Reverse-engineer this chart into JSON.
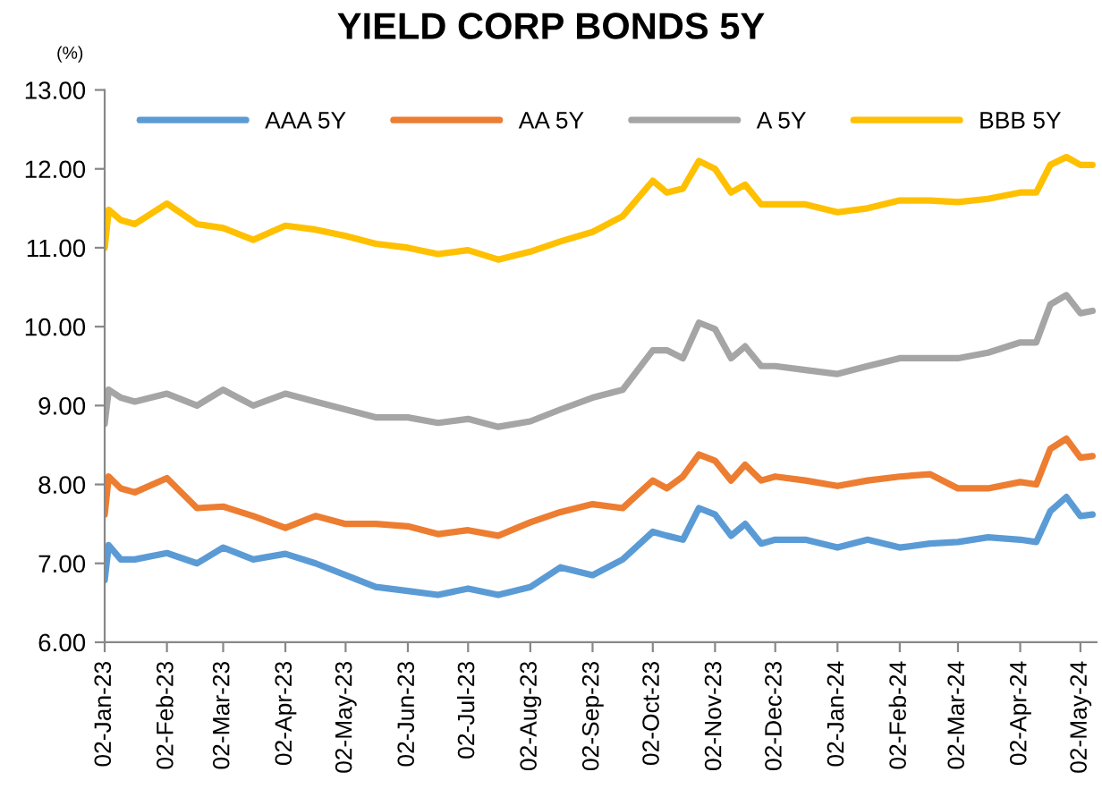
{
  "chart_data": {
    "type": "line",
    "title": "YIELD CORP BONDS 5Y",
    "ylabel": "(%)",
    "x": [
      "2023-01-02",
      "2023-01-04",
      "2023-01-10",
      "2023-01-17",
      "2023-02-02",
      "2023-02-17",
      "2023-03-02",
      "2023-03-17",
      "2023-04-02",
      "2023-04-17",
      "2023-05-02",
      "2023-05-17",
      "2023-06-02",
      "2023-06-17",
      "2023-07-02",
      "2023-07-17",
      "2023-08-02",
      "2023-08-17",
      "2023-09-02",
      "2023-09-17",
      "2023-10-02",
      "2023-10-09",
      "2023-10-17",
      "2023-10-25",
      "2023-11-02",
      "2023-11-10",
      "2023-11-17",
      "2023-11-25",
      "2023-12-02",
      "2023-12-17",
      "2024-01-02",
      "2024-01-17",
      "2024-02-02",
      "2024-02-17",
      "2024-03-02",
      "2024-03-17",
      "2024-04-02",
      "2024-04-10",
      "2024-04-17",
      "2024-04-25",
      "2024-05-02",
      "2024-05-08"
    ],
    "series": [
      {
        "name": "AAA 5Y",
        "color": "#5b9bd5",
        "values": [
          6.79,
          7.23,
          7.05,
          7.05,
          7.13,
          7.0,
          7.2,
          7.05,
          7.12,
          7.0,
          6.85,
          6.7,
          6.65,
          6.6,
          6.68,
          6.6,
          6.7,
          6.95,
          6.85,
          7.05,
          7.4,
          7.35,
          7.3,
          7.7,
          7.62,
          7.35,
          7.5,
          7.25,
          7.3,
          7.3,
          7.2,
          7.3,
          7.2,
          7.25,
          7.27,
          7.33,
          7.3,
          7.27,
          7.66,
          7.84,
          7.6,
          7.62
        ]
      },
      {
        "name": "AA 5Y",
        "color": "#ed7d31",
        "values": [
          7.62,
          8.1,
          7.95,
          7.9,
          8.08,
          7.7,
          7.72,
          7.6,
          7.45,
          7.6,
          7.5,
          7.5,
          7.47,
          7.37,
          7.42,
          7.35,
          7.52,
          7.65,
          7.75,
          7.7,
          8.05,
          7.95,
          8.1,
          8.38,
          8.3,
          8.05,
          8.25,
          8.05,
          8.1,
          8.05,
          7.98,
          8.05,
          8.1,
          8.13,
          7.95,
          7.95,
          8.03,
          8.0,
          8.45,
          8.58,
          8.34,
          8.36
        ]
      },
      {
        "name": "A 5Y",
        "color": "#a5a5a5",
        "values": [
          8.77,
          9.2,
          9.1,
          9.05,
          9.15,
          9.0,
          9.2,
          9.0,
          9.15,
          9.05,
          8.95,
          8.85,
          8.85,
          8.78,
          8.83,
          8.73,
          8.8,
          8.95,
          9.1,
          9.2,
          9.7,
          9.7,
          9.6,
          10.05,
          9.97,
          9.6,
          9.75,
          9.5,
          9.5,
          9.45,
          9.4,
          9.5,
          9.6,
          9.6,
          9.6,
          9.67,
          9.8,
          9.8,
          10.28,
          10.4,
          10.17,
          10.2
        ]
      },
      {
        "name": "BBB 5Y",
        "color": "#ffc000",
        "values": [
          11.0,
          11.48,
          11.35,
          11.3,
          11.56,
          11.3,
          11.25,
          11.1,
          11.28,
          11.23,
          11.15,
          11.05,
          11.0,
          10.92,
          10.97,
          10.85,
          10.95,
          11.08,
          11.2,
          11.4,
          11.85,
          11.7,
          11.75,
          12.1,
          12.0,
          11.7,
          11.8,
          11.55,
          11.55,
          11.55,
          11.45,
          11.5,
          11.6,
          11.6,
          11.58,
          11.62,
          11.7,
          11.7,
          12.05,
          12.15,
          12.05,
          12.05
        ]
      }
    ],
    "xlim": [
      "2023-01-02",
      "2024-05-10"
    ],
    "xticks": [
      {
        "value": "2023-01-02",
        "label": "02-Jan-23"
      },
      {
        "value": "2023-02-02",
        "label": "02-Feb-23"
      },
      {
        "value": "2023-03-02",
        "label": "02-Mar-23"
      },
      {
        "value": "2023-04-02",
        "label": "02-Apr-23"
      },
      {
        "value": "2023-05-02",
        "label": "02-May-23"
      },
      {
        "value": "2023-06-02",
        "label": "02-Jun-23"
      },
      {
        "value": "2023-07-02",
        "label": "02-Jul-23"
      },
      {
        "value": "2023-08-02",
        "label": "02-Aug-23"
      },
      {
        "value": "2023-09-02",
        "label": "02-Sep-23"
      },
      {
        "value": "2023-10-02",
        "label": "02-Oct-23"
      },
      {
        "value": "2023-11-02",
        "label": "02-Nov-23"
      },
      {
        "value": "2023-12-02",
        "label": "02-Dec-23"
      },
      {
        "value": "2024-01-02",
        "label": "02-Jan-24"
      },
      {
        "value": "2024-02-02",
        "label": "02-Feb-24"
      },
      {
        "value": "2024-03-02",
        "label": "02-Mar-24"
      },
      {
        "value": "2024-04-02",
        "label": "02-Apr-24"
      },
      {
        "value": "2024-05-02",
        "label": "02-May-24"
      }
    ],
    "ylim": [
      6,
      13
    ],
    "yticks": [
      {
        "value": 6,
        "label": "6.00"
      },
      {
        "value": 7,
        "label": "7.00"
      },
      {
        "value": 8,
        "label": "8.00"
      },
      {
        "value": 9,
        "label": "9.00"
      },
      {
        "value": 10,
        "label": "10.00"
      },
      {
        "value": 11,
        "label": "11.00"
      },
      {
        "value": 12,
        "label": "12.00"
      },
      {
        "value": 13,
        "label": "13.00"
      }
    ],
    "grid": false,
    "legend": "top",
    "marker": "none",
    "line_style": "solid"
  }
}
